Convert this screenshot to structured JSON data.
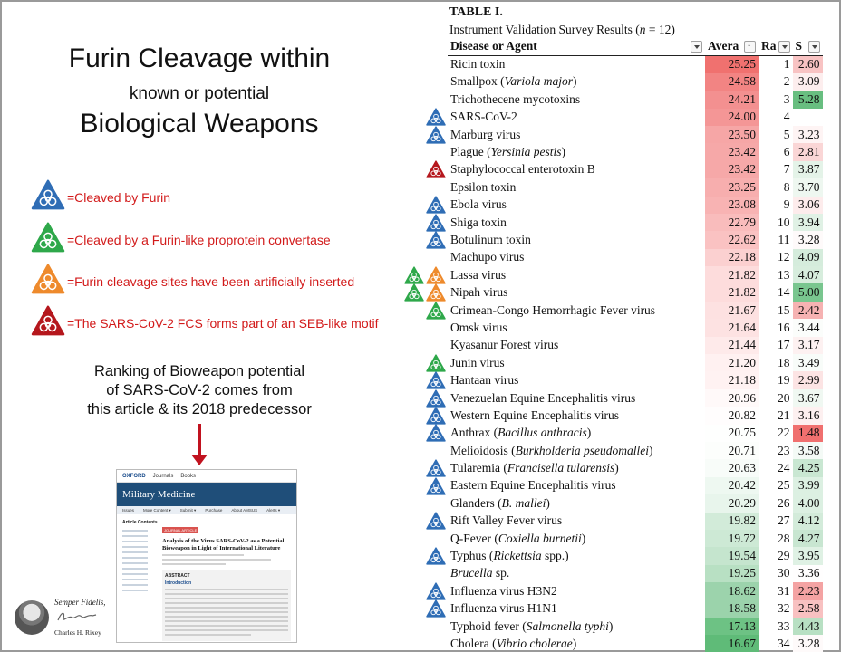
{
  "slide": {
    "title_line1": "Furin Cleavage within",
    "title_line2": "known or potential",
    "title_line3": "Biological Weapons",
    "legend": [
      {
        "color": "#2f6db5",
        "icon": "biohazard-triangle-blue-icon",
        "label": "=Cleaved by Furin"
      },
      {
        "color": "#2ea84a",
        "icon": "biohazard-triangle-green-icon",
        "label": "=Cleaved by a Furin-like proprotein convertase"
      },
      {
        "color": "#ee8a2c",
        "icon": "biohazard-triangle-orange-icon",
        "label": "=Furin cleavage sites have been artificially inserted"
      },
      {
        "color": "#b5171d",
        "icon": "biohazard-triangle-red-icon",
        "label": "=The SARS-CoV-2 FCS forms part of an SEB-like motif"
      }
    ],
    "caption_line1": "Ranking of Bioweapon potential",
    "caption_line2": "of SARS-CoV-2 comes from",
    "caption_line3": "this article & its 2018 predecessor",
    "arrow_color": "#c1121f"
  },
  "article": {
    "publisher": "OXFORD",
    "top_links": [
      "Journals",
      "Books"
    ],
    "journal": "Military Medicine",
    "nav": [
      "Issues",
      "More Content ▾",
      "Submit ▾",
      "Purchase",
      "About AMSUS",
      "Alerts ▾"
    ],
    "sidebar_heading": "Article Contents",
    "badge": "JOURNAL ARTICLE",
    "title": "Analysis of the Virus SARS-CoV-2 as a Potential Bioweapon in Light of International Literature",
    "abstract_heading": "ABSTRACT",
    "intro_heading": "Introduction"
  },
  "signature": {
    "motto": "Semper Fidelis,",
    "name": "Charles H. Rixey"
  },
  "table": {
    "title": "TABLE I.",
    "subtitle_prefix": "Instrument Validation Survey Results (",
    "subtitle_n": "n",
    "subtitle_suffix": " = 12)",
    "headers": {
      "name": "Disease or Agent",
      "avg": "Avera",
      "rank": "Ra",
      "sd": "S"
    },
    "rows": [
      {
        "name": "Ricin toxin",
        "avg": "25.25",
        "rank": "1",
        "sd": "2.60",
        "avg_bg": "#f0716f",
        "sd_bg": "#f8c3c3",
        "icons": []
      },
      {
        "name": "Smallpox (Variola major)",
        "avg": "24.58",
        "rank": "2",
        "sd": "3.09",
        "avg_bg": "#f28483",
        "sd_bg": "#fdeeee",
        "icons": []
      },
      {
        "name": "Trichothecene mycotoxins",
        "avg": "24.21",
        "rank": "3",
        "sd": "5.28",
        "avg_bg": "#f39090",
        "sd_bg": "#68be80",
        "icons": []
      },
      {
        "name": "SARS-CoV-2",
        "avg": "24.00",
        "rank": "4",
        "sd": "",
        "avg_bg": "#f49696",
        "sd_bg": "#ffffff",
        "icons": [
          "blue"
        ]
      },
      {
        "name": "Marburg virus",
        "avg": "23.50",
        "rank": "5",
        "sd": "3.23",
        "avg_bg": "#f6a6a6",
        "sd_bg": "#fef4f4",
        "icons": [
          "blue"
        ]
      },
      {
        "name": "Plague (Yersinia pestis)",
        "avg": "23.42",
        "rank": "6",
        "sd": "2.81",
        "avg_bg": "#f6a8a8",
        "sd_bg": "#fad6d6",
        "icons": []
      },
      {
        "name": "Staphylococcal enterotoxin B",
        "avg": "23.42",
        "rank": "7",
        "sd": "3.87",
        "avg_bg": "#f6a8a8",
        "sd_bg": "#e4f3e8",
        "icons": [
          "red"
        ]
      },
      {
        "name": "Epsilon toxin",
        "avg": "23.25",
        "rank": "8",
        "sd": "3.70",
        "avg_bg": "#f7aeae",
        "sd_bg": "#eef7f0",
        "icons": []
      },
      {
        "name": "Ebola virus",
        "avg": "23.08",
        "rank": "9",
        "sd": "3.06",
        "avg_bg": "#f8b3b3",
        "sd_bg": "#fdecec",
        "icons": [
          "blue"
        ]
      },
      {
        "name": "Shiga toxin",
        "avg": "22.79",
        "rank": "10",
        "sd": "3.94",
        "avg_bg": "#f9bcbc",
        "sd_bg": "#e0f1e5",
        "icons": [
          "blue"
        ]
      },
      {
        "name": "Botulinum toxin",
        "avg": "22.62",
        "rank": "11",
        "sd": "3.28",
        "avg_bg": "#fac2c2",
        "sd_bg": "#fefafa",
        "icons": [
          "blue"
        ]
      },
      {
        "name": "Machupo virus",
        "avg": "22.18",
        "rank": "12",
        "sd": "4.09",
        "avg_bg": "#fbd0d0",
        "sd_bg": "#d5ecdc",
        "icons": []
      },
      {
        "name": "Lassa virus",
        "avg": "21.82",
        "rank": "13",
        "sd": "4.07",
        "avg_bg": "#fddcdc",
        "sd_bg": "#d7eddd",
        "icons": [
          "green",
          "orange"
        ]
      },
      {
        "name": "Nipah virus",
        "avg": "21.82",
        "rank": "14",
        "sd": "5.00",
        "avg_bg": "#fddcdc",
        "sd_bg": "#79c68f",
        "icons": [
          "green",
          "orange"
        ]
      },
      {
        "name": "Crimean-Congo Hemorrhagic Fever virus",
        "avg": "21.67",
        "rank": "15",
        "sd": "2.42",
        "avg_bg": "#fde1e1",
        "sd_bg": "#f6b2b2",
        "icons": [
          "green"
        ]
      },
      {
        "name": "Omsk virus",
        "avg": "21.64",
        "rank": "16",
        "sd": "3.44",
        "avg_bg": "#fde2e2",
        "sd_bg": "#fbfdfb",
        "icons": []
      },
      {
        "name": "Kyasanur Forest virus",
        "avg": "21.44",
        "rank": "17",
        "sd": "3.17",
        "avg_bg": "#feeaea",
        "sd_bg": "#fdf1f1",
        "icons": []
      },
      {
        "name": "Junin virus",
        "avg": "21.20",
        "rank": "18",
        "sd": "3.49",
        "avg_bg": "#fff1f1",
        "sd_bg": "#f8fcf9",
        "icons": [
          "green"
        ]
      },
      {
        "name": "Hantaan virus",
        "avg": "21.18",
        "rank": "19",
        "sd": "2.99",
        "avg_bg": "#fff2f2",
        "sd_bg": "#fce4e4",
        "icons": [
          "blue"
        ]
      },
      {
        "name": "Venezuelan Equine Encephalitis virus",
        "avg": "20.96",
        "rank": "20",
        "sd": "3.67",
        "avg_bg": "#fff9f9",
        "sd_bg": "#f0f8f2",
        "icons": [
          "blue"
        ]
      },
      {
        "name": "Western Equine Encephalitis virus",
        "avg": "20.82",
        "rank": "21",
        "sd": "3.16",
        "avg_bg": "#fffdfd",
        "sd_bg": "#fdf0f0",
        "icons": [
          "blue"
        ]
      },
      {
        "name": "Anthrax (Bacillus anthracis)",
        "avg": "20.75",
        "rank": "22",
        "sd": "1.48",
        "avg_bg": "#fefffe",
        "sd_bg": "#f0706f",
        "icons": [
          "blue"
        ]
      },
      {
        "name": "Melioidosis (Burkholderia pseudomallei)",
        "avg": "20.71",
        "rank": "23",
        "sd": "3.58",
        "avg_bg": "#fcfefc",
        "sd_bg": "#f4faf6",
        "icons": []
      },
      {
        "name": "Tularemia (Francisella tularensis)",
        "avg": "20.63",
        "rank": "24",
        "sd": "4.25",
        "avg_bg": "#f8fcf9",
        "sd_bg": "#c9e7d2",
        "icons": [
          "blue"
        ]
      },
      {
        "name": "Eastern Equine Encephalitis virus",
        "avg": "20.42",
        "rank": "25",
        "sd": "3.99",
        "avg_bg": "#eef8f1",
        "sd_bg": "#dcf0e2",
        "icons": [
          "blue"
        ]
      },
      {
        "name": "Glanders (B. mallei)",
        "avg": "20.29",
        "rank": "26",
        "sd": "4.00",
        "avg_bg": "#e8f5ec",
        "sd_bg": "#dcf0e2",
        "icons": []
      },
      {
        "name": "Rift Valley Fever virus",
        "avg": "19.82",
        "rank": "27",
        "sd": "4.12",
        "avg_bg": "#d2ebd9",
        "sd_bg": "#d3ebda",
        "icons": [
          "blue"
        ]
      },
      {
        "name": "Q-Fever (Coxiella burnetii)",
        "avg": "19.72",
        "rank": "28",
        "sd": "4.27",
        "avg_bg": "#cde9d5",
        "sd_bg": "#c8e6d1",
        "icons": []
      },
      {
        "name": "Typhus (Rickettsia spp.)",
        "avg": "19.54",
        "rank": "29",
        "sd": "3.95",
        "avg_bg": "#c5e5ce",
        "sd_bg": "#dff1e4",
        "icons": [
          "blue"
        ]
      },
      {
        "name": "Brucella sp.",
        "avg": "19.25",
        "rank": "30",
        "sd": "3.36",
        "avg_bg": "#b8e0c3",
        "sd_bg": "#fffefe",
        "icons": []
      },
      {
        "name": "Influenza virus H3N2",
        "avg": "18.62",
        "rank": "31",
        "sd": "2.23",
        "avg_bg": "#9cd3ac",
        "sd_bg": "#f4a3a3",
        "icons": [
          "blue"
        ]
      },
      {
        "name": "Influenza virus H1N1",
        "avg": "18.58",
        "rank": "32",
        "sd": "2.58",
        "avg_bg": "#9bd3ab",
        "sd_bg": "#f8c1c1",
        "icons": [
          "blue"
        ]
      },
      {
        "name": "Typhoid fever (Salmonella typhi)",
        "avg": "17.13",
        "rank": "33",
        "sd": "4.43",
        "avg_bg": "#6dc284",
        "sd_bg": "#b8e0c3",
        "icons": []
      },
      {
        "name": "Cholera (Vibrio cholerae)",
        "avg": "16.67",
        "rank": "34",
        "sd": "3.28",
        "avg_bg": "#5fbb78",
        "sd_bg": "#fefafa",
        "icons": []
      }
    ]
  }
}
